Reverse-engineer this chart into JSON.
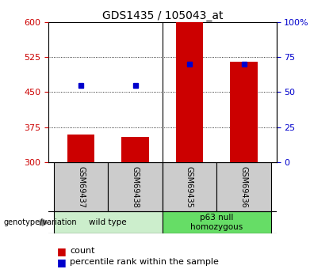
{
  "title": "GDS1435 / 105043_at",
  "samples": [
    "GSM69437",
    "GSM69438",
    "GSM69435",
    "GSM69436"
  ],
  "counts": [
    360,
    355,
    600,
    515
  ],
  "percentiles": [
    55,
    55,
    70,
    70
  ],
  "ylim_left": [
    300,
    600
  ],
  "yticks_left": [
    300,
    375,
    450,
    525,
    600
  ],
  "yticks_right": [
    0,
    25,
    50,
    75,
    100
  ],
  "ytick_labels_right": [
    "0",
    "25",
    "50",
    "75",
    "100%"
  ],
  "groups": [
    {
      "label": "wild type",
      "indices": [
        0,
        1
      ],
      "color": "#cceecc"
    },
    {
      "label": "p63 null\nhomozygous",
      "indices": [
        2,
        3
      ],
      "color": "#66dd66"
    }
  ],
  "bar_color": "#cc0000",
  "point_color": "#0000cc",
  "bar_width": 0.5,
  "left_tick_color": "#cc0000",
  "right_tick_color": "#0000cc",
  "genotype_label": "genotype/variation",
  "legend_count_label": "count",
  "legend_pct_label": "percentile rank within the sample",
  "sample_box_color": "#cccccc",
  "title_fontsize": 10,
  "tick_fontsize": 8
}
